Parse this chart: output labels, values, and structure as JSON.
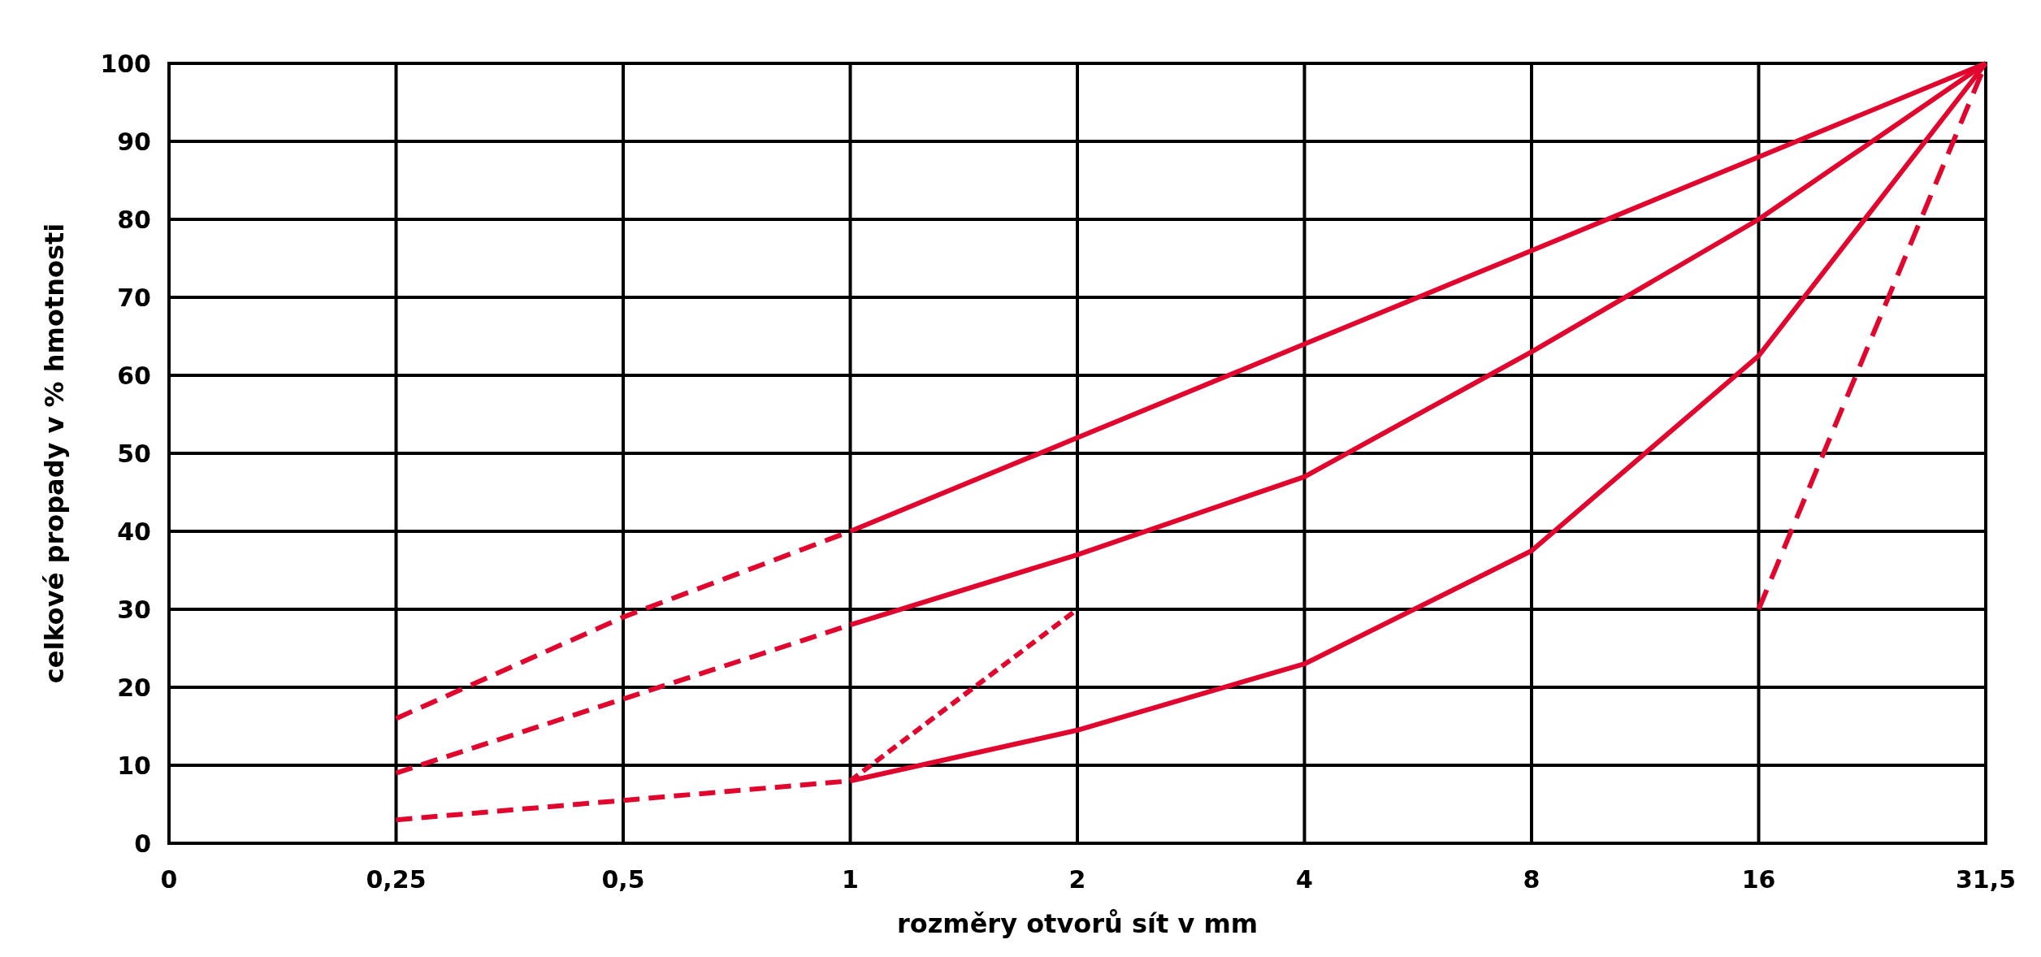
{
  "chart_data": {
    "type": "line",
    "xlabel": "rozměry otvorů sít v mm",
    "ylabel": "celkové propady v % hmotnosti",
    "categories": [
      "0",
      "0,25",
      "0,5",
      "1",
      "2",
      "4",
      "8",
      "16",
      "31,5"
    ],
    "ylim": [
      0,
      100
    ],
    "yticks": [
      0,
      10,
      20,
      30,
      40,
      50,
      60,
      70,
      80,
      90,
      100
    ],
    "grid": true,
    "marker": "none",
    "series": [
      {
        "color": "#e0062d",
        "line_style": "dashed",
        "values": [
          null,
          16,
          29,
          40,
          null,
          null,
          null,
          null,
          null
        ]
      },
      {
        "color": "#e0062d",
        "line_style": "solid",
        "values": [
          null,
          null,
          null,
          40,
          52,
          64,
          76,
          88,
          100
        ]
      },
      {
        "color": "#e0062d",
        "line_style": "dashed",
        "values": [
          null,
          9,
          18.5,
          28,
          null,
          null,
          null,
          null,
          null
        ]
      },
      {
        "color": "#e0062d",
        "line_style": "solid",
        "values": [
          null,
          null,
          null,
          28,
          37,
          47,
          63,
          80,
          100
        ]
      },
      {
        "color": "#e0062d",
        "line_style": "dashed",
        "values": [
          null,
          3,
          5.5,
          8,
          null,
          null,
          null,
          null,
          null
        ]
      },
      {
        "color": "#e0062d",
        "line_style": "solid",
        "values": [
          null,
          null,
          null,
          8,
          14.5,
          23,
          37.5,
          62.5,
          100
        ]
      },
      {
        "color": "#e0062d",
        "line_style": "dashed",
        "values": [
          null,
          null,
          null,
          8,
          30,
          null,
          null,
          null,
          null
        ]
      },
      {
        "color": "#e0062d",
        "line_style": "dashed",
        "values": [
          null,
          null,
          null,
          null,
          null,
          null,
          null,
          30,
          100
        ]
      }
    ]
  }
}
